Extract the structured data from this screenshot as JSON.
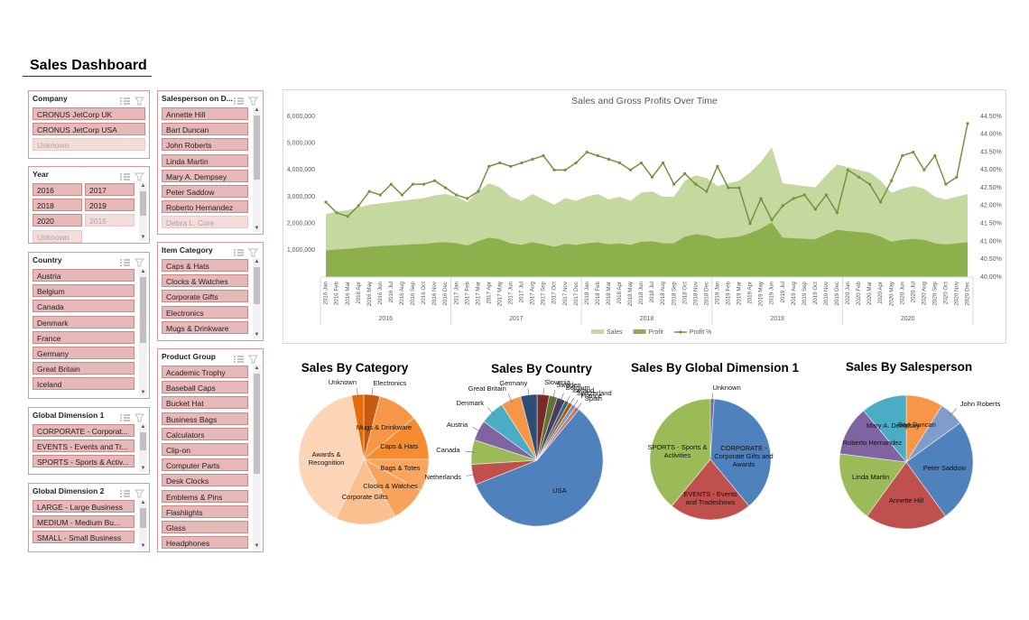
{
  "header": {
    "title": "Sales Dashboard"
  },
  "slicers": [
    {
      "title": "Company",
      "scrollbar": false,
      "columns": 1,
      "items": [
        {
          "label": "CRONUS JetCorp UK",
          "available": true
        },
        {
          "label": "CRONUS JetCorp USA",
          "available": true
        },
        {
          "label": "Unknown",
          "available": false
        }
      ]
    },
    {
      "title": "Year",
      "scrollbar": true,
      "columns": 2,
      "items": [
        {
          "label": "2016",
          "available": true
        },
        {
          "label": "2017",
          "available": true
        },
        {
          "label": "2018",
          "available": true
        },
        {
          "label": "2019",
          "available": true
        },
        {
          "label": "2020",
          "available": true
        },
        {
          "label": "2015",
          "available": false
        },
        {
          "label": "Unknown",
          "available": false
        }
      ]
    },
    {
      "title": "Country",
      "scrollbar": true,
      "columns": 1,
      "items": [
        {
          "label": "Austria",
          "available": true
        },
        {
          "label": "Belgium",
          "available": true
        },
        {
          "label": "Canada",
          "available": true
        },
        {
          "label": "Denmark",
          "available": true
        },
        {
          "label": "France",
          "available": true
        },
        {
          "label": "Germany",
          "available": true
        },
        {
          "label": "Great Britain",
          "available": true
        },
        {
          "label": "Iceland",
          "available": true
        }
      ]
    },
    {
      "title": "Global Dimension 1",
      "scrollbar": true,
      "columns": 1,
      "items": [
        {
          "label": "CORPORATE - Corporat...",
          "available": true
        },
        {
          "label": "EVENTS - Events and Tr...",
          "available": true
        },
        {
          "label": "SPORTS - Sports & Activ...",
          "available": true
        }
      ]
    },
    {
      "title": "Global Dimension 2",
      "scrollbar": true,
      "columns": 1,
      "items": [
        {
          "label": "LARGE - Large Business",
          "available": true
        },
        {
          "label": "MEDIUM - Medium Bu...",
          "available": true
        },
        {
          "label": "SMALL - Small Business",
          "available": true
        }
      ]
    },
    {
      "title": "Salesperson on D...",
      "scrollbar": true,
      "columns": 1,
      "items": [
        {
          "label": "Annette Hill",
          "available": true
        },
        {
          "label": "Bart Duncan",
          "available": true
        },
        {
          "label": "John Roberts",
          "available": true
        },
        {
          "label": "Linda Martin",
          "available": true
        },
        {
          "label": "Mary A. Dempsey",
          "available": true
        },
        {
          "label": "Peter Saddow",
          "available": true
        },
        {
          "label": "Roberto Hernandez",
          "available": true
        },
        {
          "label": "Debra L. Core",
          "available": false
        }
      ]
    },
    {
      "title": "Item Category",
      "scrollbar": true,
      "columns": 1,
      "items": [
        {
          "label": "Caps & Hats",
          "available": true
        },
        {
          "label": "Clocks & Watches",
          "available": true
        },
        {
          "label": "Corporate Gifts",
          "available": true
        },
        {
          "label": "Electronics",
          "available": true
        },
        {
          "label": "Mugs & Drinkware",
          "available": true
        }
      ]
    },
    {
      "title": "Product Group",
      "scrollbar": true,
      "columns": 1,
      "items": [
        {
          "label": "Academic Trophy",
          "available": true
        },
        {
          "label": "Baseball Caps",
          "available": true
        },
        {
          "label": "Bucket Hat",
          "available": true
        },
        {
          "label": "Business Bags",
          "available": true
        },
        {
          "label": "Calculators",
          "available": true
        },
        {
          "label": "Clip-on",
          "available": true
        },
        {
          "label": "Computer Parts",
          "available": true
        },
        {
          "label": "Desk Clocks",
          "available": true
        },
        {
          "label": "Emblems & Pins",
          "available": true
        },
        {
          "label": "Flashlights",
          "available": true
        },
        {
          "label": "Glass",
          "available": true
        },
        {
          "label": "Headphones",
          "available": true
        }
      ]
    }
  ],
  "chart_data": [
    {
      "type": "combo",
      "title": "Sales and Gross Profits Over Time",
      "categories": [
        "2016 Jan",
        "2016 Feb",
        "2016 Mar",
        "2016 Apr",
        "2016 May",
        "2016 Jun",
        "2016 Jul",
        "2016 Aug",
        "2016 Sep",
        "2016 Oct",
        "2016 Nov",
        "2016 Dec",
        "2017 Jan",
        "2017 Feb",
        "2017 Mar",
        "2017 Apr",
        "2017 May",
        "2017 Jun",
        "2017 Jul",
        "2017 Aug",
        "2017 Sep",
        "2017 Oct",
        "2017 Nov",
        "2017 Dec",
        "2018 Jan",
        "2018 Feb",
        "2018 Mar",
        "2018 Apr",
        "2018 May",
        "2018 Jun",
        "2018 Jul",
        "2018 Aug",
        "2018 Sep",
        "2018 Oct",
        "2018 Nov",
        "2018 Dec",
        "2019 Jan",
        "2019 Feb",
        "2019 Mar",
        "2019 Apr",
        "2019 May",
        "2019 Jun",
        "2019 Jul",
        "2019 Aug",
        "2019 Sep",
        "2019 Oct",
        "2019 Nov",
        "2019 Dec",
        "2020 Jan",
        "2020 Feb",
        "2020 Mar",
        "2020 Apr",
        "2020 May",
        "2020 Jun",
        "2020 Jul",
        "2020 Aug",
        "2020 Sep",
        "2020 Oct",
        "2020 Nov",
        "2020 Dec"
      ],
      "groups": [
        "2016",
        "2017",
        "2018",
        "2019",
        "2020"
      ],
      "ylim": [
        0,
        6000000
      ],
      "yticks": [
        {
          "value": 1000000,
          "label": "1,000,000"
        },
        {
          "value": 2000000,
          "label": "2,000,000"
        },
        {
          "value": 3000000,
          "label": "3,000,000"
        },
        {
          "value": 4000000,
          "label": "4,000,000"
        },
        {
          "value": 5000000,
          "label": "5,000,000"
        },
        {
          "value": 6000000,
          "label": "6,000,000"
        }
      ],
      "y2lim": [
        40,
        44.5
      ],
      "y2ticks": [
        {
          "value": 40,
          "label": "40.00%"
        },
        {
          "value": 40.5,
          "label": "40.50%"
        },
        {
          "value": 41,
          "label": "41.00%"
        },
        {
          "value": 41.5,
          "label": "41.50%"
        },
        {
          "value": 42,
          "label": "42.00%"
        },
        {
          "value": 42.5,
          "label": "42.50%"
        },
        {
          "value": 43,
          "label": "43.00%"
        },
        {
          "value": 43.5,
          "label": "43.50%"
        },
        {
          "value": 44,
          "label": "44.00%"
        },
        {
          "value": 44.5,
          "label": "44.50%"
        }
      ],
      "grid": false,
      "series": [
        {
          "name": "Sales",
          "kind": "area",
          "color": "#c4d8a0",
          "values": [
            2350000,
            2450000,
            2500000,
            2600000,
            2700000,
            2750000,
            2800000,
            2850000,
            2900000,
            2950000,
            3050000,
            3100000,
            3000000,
            2800000,
            3200000,
            3500000,
            3350000,
            3000000,
            2850000,
            3100000,
            2900000,
            2700000,
            2950000,
            2850000,
            3000000,
            3100000,
            2900000,
            3000000,
            2850000,
            3150000,
            3200000,
            3000000,
            3000000,
            3600000,
            3800000,
            3700000,
            3400000,
            3500000,
            3600000,
            3900000,
            4300000,
            4850000,
            3500000,
            3450000,
            3400000,
            3350000,
            3800000,
            4200000,
            4100000,
            4000000,
            3900000,
            3600000,
            3150000,
            3300000,
            3400000,
            3300000,
            3000000,
            2900000,
            3000000,
            3100000
          ]
        },
        {
          "name": "Profit",
          "kind": "area",
          "color": "#8db04d",
          "values": [
            990000,
            1030000,
            1050000,
            1090000,
            1130000,
            1160000,
            1180000,
            1200000,
            1220000,
            1240000,
            1280000,
            1300000,
            1260000,
            1180000,
            1340000,
            1470000,
            1410000,
            1260000,
            1200000,
            1300000,
            1220000,
            1130000,
            1240000,
            1200000,
            1260000,
            1300000,
            1220000,
            1260000,
            1200000,
            1320000,
            1340000,
            1260000,
            1260000,
            1510000,
            1600000,
            1550000,
            1430000,
            1470000,
            1510000,
            1640000,
            1810000,
            2040000,
            1470000,
            1450000,
            1430000,
            1410000,
            1600000,
            1760000,
            1720000,
            1680000,
            1640000,
            1510000,
            1320000,
            1390000,
            1430000,
            1390000,
            1260000,
            1220000,
            1260000,
            1300000
          ]
        },
        {
          "name": "Profit %",
          "kind": "line",
          "axis": "y2",
          "color": "#76923c",
          "values": [
            42.1,
            41.8,
            41.7,
            42.0,
            42.4,
            42.3,
            42.6,
            42.3,
            42.6,
            42.6,
            42.7,
            42.5,
            42.3,
            42.2,
            42.4,
            43.1,
            43.2,
            43.1,
            43.2,
            43.3,
            43.4,
            43.0,
            43.0,
            43.2,
            43.5,
            43.4,
            43.3,
            43.2,
            43.0,
            43.2,
            42.8,
            43.2,
            42.6,
            42.9,
            42.6,
            42.4,
            43.1,
            42.5,
            42.5,
            41.5,
            42.2,
            41.6,
            42.0,
            42.2,
            42.3,
            41.9,
            42.3,
            41.8,
            43.0,
            42.8,
            42.6,
            42.1,
            42.7,
            43.4,
            43.5,
            43.0,
            43.4,
            42.6,
            42.8,
            44.3
          ]
        }
      ],
      "legend": "bottom"
    },
    {
      "type": "pie",
      "title": "Sales By Category",
      "categories": [
        "Electronics",
        "Mugs & Drinkware",
        "Caps & Hats",
        "Bags & Totes",
        "Clocks & Watches",
        "Corporate Gifts",
        "Awards & Recognition",
        "Unknown"
      ],
      "values": [
        4,
        10,
        11,
        8,
        9,
        15,
        40,
        3
      ],
      "colors": [
        "#c55a11",
        "#f79646",
        "#f68c2f",
        "#f9a55e",
        "#f7a35b",
        "#fac090",
        "#fbd5b5",
        "#e46c0a"
      ]
    },
    {
      "type": "pie",
      "title": "Sales By Country",
      "categories": [
        "Slovenia",
        "Sweden",
        "Belgium",
        "Iceland",
        "Switzerland",
        "France",
        "Spain",
        "USA",
        "Netherlands",
        "Canada",
        "Austria",
        "Denmark",
        "Great Britain",
        "Germany"
      ],
      "values": [
        3,
        2,
        2,
        1,
        1,
        1,
        1,
        58,
        5,
        6,
        5,
        6,
        5,
        4
      ],
      "colors": [
        "#772c2a",
        "#5f7530",
        "#4d3b62",
        "#276a7c",
        "#b65708",
        "#729aca",
        "#cd7371",
        "#4f81bd",
        "#c0504d",
        "#9bbb59",
        "#8064a2",
        "#4bacc6",
        "#f79646",
        "#2c4d75"
      ]
    },
    {
      "type": "pie",
      "title": "Sales By Global Dimension 1",
      "categories": [
        "Unknown",
        "CORPORATE - Corporate Gifts and Awards",
        "EVENTS - Events and Tradeshows",
        "SPORTS - Sports & Activities"
      ],
      "values": [
        1,
        38,
        22,
        39
      ],
      "colors": [
        "#8064a2",
        "#4f81bd",
        "#c0504d",
        "#9bbb59"
      ]
    },
    {
      "type": "pie",
      "title": "Sales By Salesperson",
      "categories": [
        "Bart Duncan",
        "John Roberts",
        "Peter Saddow",
        "Annette Hill",
        "Linda Martin",
        "Roberto Hernandez",
        "Mary A. Dempsey"
      ],
      "values": [
        9,
        6,
        25,
        20,
        17,
        12,
        11
      ],
      "colors": [
        "#f79646",
        "#7f9dc8",
        "#4f81bd",
        "#c0504d",
        "#9bbb59",
        "#8064a2",
        "#4bacc6"
      ]
    }
  ]
}
